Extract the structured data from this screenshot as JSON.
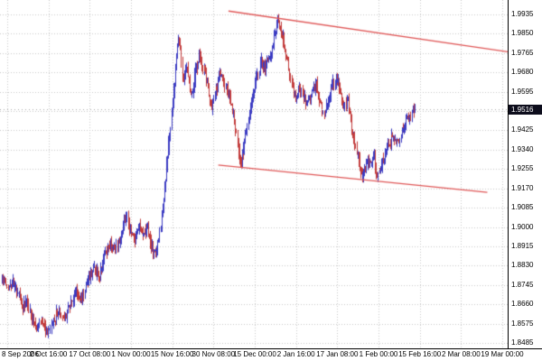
{
  "chart_data": {
    "type": "candlestick",
    "title": "",
    "y_ticks": [
      "1.9935",
      "1.9850",
      "1.9765",
      "1.9680",
      "1.9595",
      "1.9510",
      "1.9425",
      "1.9340",
      "1.9255",
      "1.9170",
      "1.9085",
      "1.9000",
      "1.8915",
      "1.8830",
      "1.8745",
      "1.8660",
      "1.8575",
      "1.8485"
    ],
    "x_ticks": [
      "8 Sep 2006",
      "2 Oct 16:00",
      "17 Oct 08:00",
      "1 Nov 00:00",
      "15 Nov 16:00",
      "30 Nov 08:00",
      "15 Dec 00:00",
      "2 Jan 16:00",
      "17 Jan 08:00",
      "1 Feb 00:00",
      "15 Feb 16:00",
      "2 Mar 08:00",
      "19 Mar 00:00"
    ],
    "ylim": [
      1.8485,
      1.9935
    ],
    "grid": "dotted",
    "current_price": 1.9516,
    "current_price_label": "1.9516",
    "candle_count": 420,
    "candle_area_fraction": 0.82,
    "price_path": [
      [
        0.0,
        1.877
      ],
      [
        0.012,
        1.8725
      ],
      [
        0.025,
        1.876
      ],
      [
        0.038,
        1.87
      ],
      [
        0.05,
        1.864
      ],
      [
        0.06,
        1.8665
      ],
      [
        0.072,
        1.86
      ],
      [
        0.085,
        1.856
      ],
      [
        0.095,
        1.859
      ],
      [
        0.11,
        1.8515
      ],
      [
        0.122,
        1.857
      ],
      [
        0.135,
        1.8625
      ],
      [
        0.148,
        1.859
      ],
      [
        0.162,
        1.8645
      ],
      [
        0.178,
        1.871
      ],
      [
        0.192,
        1.8675
      ],
      [
        0.208,
        1.876
      ],
      [
        0.222,
        1.882
      ],
      [
        0.235,
        1.878
      ],
      [
        0.25,
        1.887
      ],
      [
        0.262,
        1.893
      ],
      [
        0.275,
        1.8895
      ],
      [
        0.29,
        1.898
      ],
      [
        0.3,
        1.905
      ],
      [
        0.312,
        1.8975
      ],
      [
        0.322,
        1.893
      ],
      [
        0.332,
        1.899
      ],
      [
        0.342,
        1.895
      ],
      [
        0.352,
        1.9
      ],
      [
        0.362,
        1.89
      ],
      [
        0.372,
        1.8865
      ],
      [
        0.382,
        1.896
      ],
      [
        0.392,
        1.912
      ],
      [
        0.402,
        1.932
      ],
      [
        0.412,
        1.952
      ],
      [
        0.42,
        1.97
      ],
      [
        0.428,
        1.9845
      ],
      [
        0.438,
        1.965
      ],
      [
        0.448,
        1.972
      ],
      [
        0.458,
        1.958
      ],
      [
        0.468,
        1.968
      ],
      [
        0.478,
        1.976
      ],
      [
        0.488,
        1.97
      ],
      [
        0.498,
        1.962
      ],
      [
        0.508,
        1.9515
      ],
      [
        0.518,
        1.96
      ],
      [
        0.528,
        1.968
      ],
      [
        0.538,
        1.963
      ],
      [
        0.548,
        1.958
      ],
      [
        0.558,
        1.952
      ],
      [
        0.568,
        1.94
      ],
      [
        0.578,
        1.926
      ],
      [
        0.588,
        1.938
      ],
      [
        0.598,
        1.948
      ],
      [
        0.608,
        1.958
      ],
      [
        0.618,
        1.966
      ],
      [
        0.628,
        1.973
      ],
      [
        0.638,
        1.969
      ],
      [
        0.65,
        1.977
      ],
      [
        0.672,
        1.9917
      ],
      [
        0.684,
        1.978
      ],
      [
        0.694,
        1.97
      ],
      [
        0.704,
        1.962
      ],
      [
        0.712,
        1.956
      ],
      [
        0.72,
        1.962
      ],
      [
        0.73,
        1.958
      ],
      [
        0.74,
        1.953
      ],
      [
        0.75,
        1.958
      ],
      [
        0.76,
        1.964
      ],
      [
        0.77,
        1.956
      ],
      [
        0.78,
        1.95
      ],
      [
        0.79,
        1.956
      ],
      [
        0.8,
        1.962
      ],
      [
        0.81,
        1.966
      ],
      [
        0.82,
        1.958
      ],
      [
        0.83,
        1.952
      ],
      [
        0.838,
        1.956
      ],
      [
        0.846,
        1.946
      ],
      [
        0.856,
        1.936
      ],
      [
        0.866,
        1.928
      ],
      [
        0.874,
        1.9216
      ],
      [
        0.884,
        1.93
      ],
      [
        0.892,
        1.926
      ],
      [
        0.9,
        1.933
      ],
      [
        0.91,
        1.9205
      ],
      [
        0.92,
        1.928
      ],
      [
        0.932,
        1.933
      ],
      [
        0.944,
        1.939
      ],
      [
        0.956,
        1.936
      ],
      [
        0.968,
        1.942
      ],
      [
        0.98,
        1.946
      ],
      [
        1.0,
        1.9516
      ]
    ],
    "trendlines": [
      {
        "x1": 0.45,
        "p1": 1.995,
        "x2": 1.0,
        "p2": 1.977
      },
      {
        "x1": 0.43,
        "p1": 1.927,
        "x2": 0.96,
        "p2": 1.915
      }
    ],
    "colors": {
      "background": "#FFFFFF",
      "bull": "#3B3BC2",
      "bear": "#C23B3B",
      "trendline": "#E05858",
      "grid": "#C9C9C9",
      "axis_text": "#000000",
      "bid_line": "#AAAAAA",
      "price_tag_bg": "#0D0D1C",
      "price_tag_text": "#FFFFFF"
    }
  }
}
